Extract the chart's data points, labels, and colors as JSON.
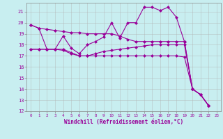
{
  "xlabel": "Windchill (Refroidissement éolien,°C)",
  "bg_color": "#c8eef0",
  "line_color": "#990099",
  "grid_color": "#b0b0b0",
  "xlim": [
    -0.5,
    23.5
  ],
  "ylim": [
    12,
    21.8
  ],
  "xticks": [
    0,
    1,
    2,
    3,
    4,
    5,
    6,
    7,
    8,
    9,
    10,
    11,
    12,
    13,
    14,
    15,
    16,
    17,
    18,
    19,
    20,
    21,
    22,
    23
  ],
  "yticks": [
    12,
    13,
    14,
    15,
    16,
    17,
    18,
    19,
    20,
    21
  ],
  "line1": [
    19.8,
    19.5,
    19.4,
    19.3,
    19.2,
    19.1,
    19.1,
    19.0,
    19.0,
    19.0,
    19.0,
    18.8,
    18.5,
    18.3,
    18.3,
    18.3,
    18.3,
    18.3,
    18.3,
    18.3,
    14.0,
    13.5,
    12.5
  ],
  "line2": [
    19.8,
    19.5,
    17.6,
    17.6,
    18.8,
    17.7,
    17.2,
    18.0,
    18.3,
    18.7,
    20.0,
    18.6,
    20.0,
    20.0,
    21.4,
    21.4,
    21.1,
    21.4,
    20.5,
    18.3,
    14.0,
    13.5,
    12.5
  ],
  "line3": [
    17.6,
    17.6,
    17.6,
    17.6,
    17.6,
    17.3,
    17.0,
    17.0,
    17.2,
    17.4,
    17.5,
    17.6,
    17.7,
    17.8,
    17.9,
    18.0,
    18.0,
    18.0,
    18.0,
    18.0,
    14.0,
    13.5,
    12.5
  ],
  "line4": [
    17.6,
    17.6,
    17.6,
    17.6,
    17.5,
    17.2,
    17.0,
    17.0,
    17.0,
    17.0,
    17.0,
    17.0,
    17.0,
    17.0,
    17.0,
    17.0,
    17.0,
    17.0,
    17.0,
    16.9,
    14.0,
    13.5,
    12.5
  ],
  "marker": "D",
  "markersize": 2.5,
  "linewidth": 0.8
}
